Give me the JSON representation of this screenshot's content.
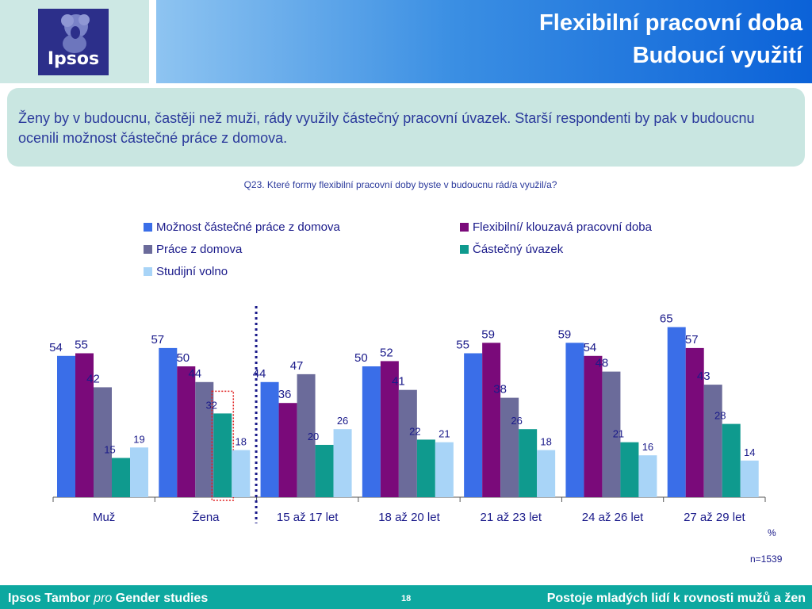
{
  "header": {
    "logo_text": "Ipsos",
    "title_line1": "Flexibilní pracovní doba",
    "title_line2": "Budoucí využití"
  },
  "callout": {
    "text": "Ženy by v budoucnu, častěji než muži, rády využily částečný pracovní úvazek. Starší respondenti by pak v budoucnu ocenili možnost částečné práce z domova."
  },
  "question": "Q23. Které formy flexibilní pracovní doby byste v budoucnu rád/a využil/a?",
  "unit": "%",
  "sample": "n=1539",
  "footer": {
    "left_part1": "Ipsos Tambor ",
    "left_italic": "pro",
    "left_part2": " Gender studies",
    "page": "18",
    "right": "Postoje mladých lidí k rovnosti mužů a žen"
  },
  "colors": {
    "series": [
      "#3a6ee8",
      "#7a0a7a",
      "#6b6b9a",
      "#0f9a8e",
      "#a8d4f7"
    ],
    "highlight": "#e02020",
    "divider": "#1a1a8a"
  },
  "chart_data": {
    "type": "bar",
    "categories": [
      "Muž",
      "Žena",
      "15 až 17 let",
      "18 až 20 let",
      "21 až 23 let",
      "24 až 26 let",
      "27 až 29 let"
    ],
    "series": [
      {
        "name": "Možnost částečné práce z domova",
        "values": [
          54,
          57,
          44,
          50,
          55,
          59,
          65
        ]
      },
      {
        "name": "Flexibilní/ klouzavá pracovní doba",
        "values": [
          55,
          50,
          36,
          52,
          59,
          54,
          57
        ]
      },
      {
        "name": "Práce z domova",
        "values": [
          42,
          44,
          47,
          41,
          38,
          48,
          43
        ]
      },
      {
        "name": "Částečný úvazek",
        "values": [
          15,
          32,
          20,
          22,
          26,
          21,
          28
        ]
      },
      {
        "name": "Studijní volno",
        "values": [
          19,
          18,
          26,
          21,
          18,
          16,
          14
        ]
      }
    ],
    "ylim": [
      0,
      70
    ],
    "grid": false,
    "legend_position": "top",
    "highlighted_bar": {
      "category": "Žena",
      "series": "Částečný úvazek"
    },
    "divider_after_category": "Žena"
  }
}
